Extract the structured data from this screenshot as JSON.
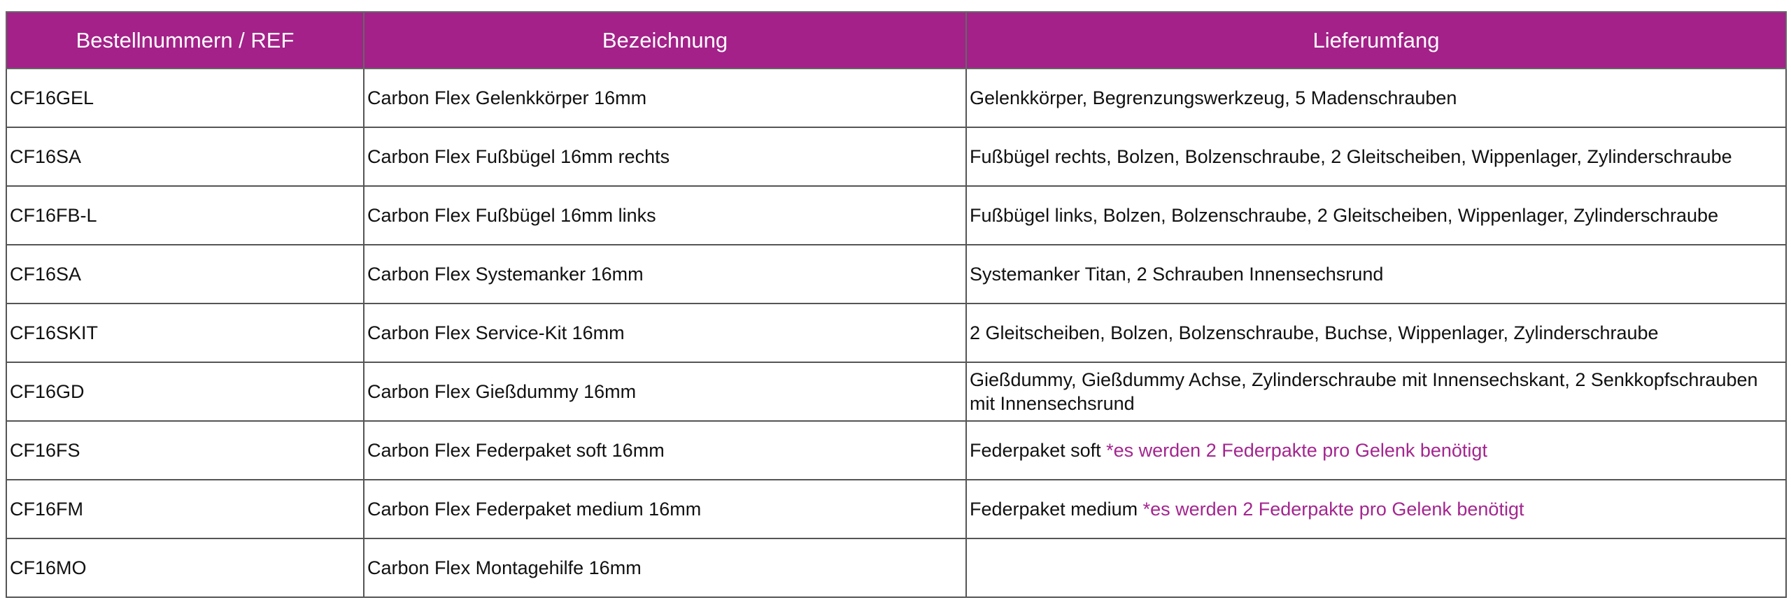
{
  "headers": [
    "Bestellnummern / REF",
    "Bezeichnung",
    "Lieferumfang"
  ],
  "accent_color": "#a32189",
  "rows": [
    {
      "ref": "CF16GEL",
      "name": "Carbon Flex Gelenkkörper 16mm",
      "scope": "Gelenkkörper, Begrenzungswerkzeug, 5 Madenschrauben",
      "note": ""
    },
    {
      "ref": "CF16SA",
      "name": "Carbon Flex Fußbügel 16mm rechts",
      "scope": "Fußbügel rechts, Bolzen, Bolzenschraube, 2 Gleitscheiben, Wippenlager, Zylinderschraube",
      "note": ""
    },
    {
      "ref": "CF16FB-L",
      "name": "Carbon Flex Fußbügel 16mm links",
      "scope": "Fußbügel links, Bolzen, Bolzenschraube, 2 Gleitscheiben, Wippenlager, Zylinderschraube",
      "note": ""
    },
    {
      "ref": "CF16SA",
      "name": "Carbon Flex Systemanker 16mm",
      "scope": "Systemanker Titan, 2 Schrauben Innensechsrund",
      "note": ""
    },
    {
      "ref": "CF16SKIT",
      "name": "Carbon Flex Service-Kit 16mm",
      "scope": "2 Gleitscheiben, Bolzen, Bolzenschraube, Buchse, Wippenlager, Zylinderschraube",
      "note": ""
    },
    {
      "ref": "CF16GD",
      "name": "Carbon Flex Gießdummy 16mm",
      "scope": "Gießdummy, Gießdummy Achse, Zylinderschraube mit Innensechskant, 2 Senkkopfschrauben mit Innensechsrund",
      "note": ""
    },
    {
      "ref": "CF16FS",
      "name": "Carbon Flex Federpaket soft 16mm",
      "scope": "Federpaket soft ",
      "note": "*es werden 2 Federpakte pro Gelenk benötigt"
    },
    {
      "ref": "CF16FM",
      "name": "Carbon Flex Federpaket medium 16mm",
      "scope": "Federpaket medium ",
      "note": "*es werden 2 Federpakte pro Gelenk benötigt"
    },
    {
      "ref": "CF16MO",
      "name": "Carbon Flex Montagehilfe 16mm",
      "scope": "",
      "note": ""
    }
  ]
}
